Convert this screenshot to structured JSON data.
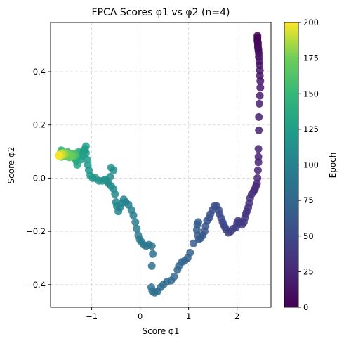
{
  "chart_data": {
    "type": "scatter",
    "title": "FPCA Scores φ1 vs φ2 (n=4)",
    "xlabel": "Score φ1",
    "ylabel": "Score φ2",
    "xlim": [
      -1.85,
      2.7
    ],
    "ylim": [
      -0.485,
      0.585
    ],
    "xticks": [
      -1,
      0,
      1,
      2
    ],
    "xtick_labels": [
      "−1",
      "0",
      "1",
      "2"
    ],
    "yticks": [
      -0.4,
      -0.2,
      0.0,
      0.2,
      0.4
    ],
    "ytick_labels": [
      "−0.4",
      "−0.2",
      "0.0",
      "0.2",
      "0.4"
    ],
    "grid": true,
    "colorbar": {
      "label": "Epoch",
      "colormap": "viridis",
      "range": [
        0,
        200
      ],
      "ticks": [
        0,
        25,
        50,
        75,
        100,
        125,
        150,
        175,
        200
      ],
      "tick_labels": [
        "0",
        "25",
        "50",
        "75",
        "100",
        "125",
        "150",
        "175",
        "200"
      ]
    },
    "points": [
      [
        2.42,
        0.535,
        0
      ],
      [
        2.42,
        0.528,
        1
      ],
      [
        2.42,
        0.522,
        2
      ],
      [
        2.42,
        0.515,
        3
      ],
      [
        2.43,
        0.508,
        4
      ],
      [
        2.43,
        0.5,
        5
      ],
      [
        2.43,
        0.492,
        6
      ],
      [
        2.44,
        0.485,
        7
      ],
      [
        2.44,
        0.478,
        8
      ],
      [
        2.45,
        0.468,
        9
      ],
      [
        2.45,
        0.455,
        10
      ],
      [
        2.46,
        0.44,
        11
      ],
      [
        2.46,
        0.425,
        12
      ],
      [
        2.47,
        0.405,
        13
      ],
      [
        2.47,
        0.385,
        14
      ],
      [
        2.48,
        0.365,
        15
      ],
      [
        2.48,
        0.34,
        16
      ],
      [
        2.47,
        0.31,
        17
      ],
      [
        2.46,
        0.28,
        18
      ],
      [
        2.45,
        0.23,
        19
      ],
      [
        2.45,
        0.18,
        20
      ],
      [
        2.44,
        0.11,
        21
      ],
      [
        2.44,
        0.08,
        22
      ],
      [
        2.44,
        0.06,
        23
      ],
      [
        2.43,
        0.03,
        24
      ],
      [
        2.42,
        0.0,
        25
      ],
      [
        2.41,
        -0.02,
        26
      ],
      [
        2.39,
        -0.03,
        27
      ],
      [
        2.37,
        -0.04,
        28
      ],
      [
        2.34,
        -0.05,
        29
      ],
      [
        2.3,
        -0.06,
        30
      ],
      [
        2.27,
        -0.075,
        31
      ],
      [
        2.25,
        -0.095,
        32
      ],
      [
        2.23,
        -0.11,
        33
      ],
      [
        2.2,
        -0.125,
        34
      ],
      [
        2.18,
        -0.135,
        35
      ],
      [
        2.16,
        -0.15,
        36
      ],
      [
        2.14,
        -0.165,
        37
      ],
      [
        2.1,
        -0.175,
        38
      ],
      [
        2.05,
        -0.165,
        39
      ],
      [
        2.02,
        -0.16,
        40
      ],
      [
        2.0,
        -0.17,
        41
      ],
      [
        1.98,
        -0.185,
        42
      ],
      [
        1.92,
        -0.19,
        43
      ],
      [
        1.87,
        -0.2,
        44
      ],
      [
        1.82,
        -0.205,
        45
      ],
      [
        1.78,
        -0.195,
        46
      ],
      [
        1.75,
        -0.185,
        47
      ],
      [
        1.72,
        -0.175,
        48
      ],
      [
        1.7,
        -0.165,
        49
      ],
      [
        1.67,
        -0.15,
        50
      ],
      [
        1.64,
        -0.135,
        51
      ],
      [
        1.62,
        -0.12,
        52
      ],
      [
        1.58,
        -0.105,
        53
      ],
      [
        1.53,
        -0.105,
        54
      ],
      [
        1.49,
        -0.12,
        55
      ],
      [
        1.45,
        -0.135,
        56
      ],
      [
        1.42,
        -0.15,
        57
      ],
      [
        1.38,
        -0.16,
        58
      ],
      [
        1.35,
        -0.18,
        59
      ],
      [
        1.33,
        -0.2,
        60
      ],
      [
        1.29,
        -0.215,
        61
      ],
      [
        1.25,
        -0.225,
        62
      ],
      [
        1.21,
        -0.23,
        63
      ],
      [
        1.19,
        -0.215,
        64
      ],
      [
        1.17,
        -0.195,
        65
      ],
      [
        1.18,
        -0.175,
        66
      ],
      [
        1.2,
        -0.165,
        67
      ],
      [
        1.1,
        -0.245,
        68
      ],
      [
        1.03,
        -0.28,
        69
      ],
      [
        0.98,
        -0.3,
        70
      ],
      [
        0.92,
        -0.31,
        71
      ],
      [
        0.86,
        -0.315,
        72
      ],
      [
        0.8,
        -0.33,
        73
      ],
      [
        0.77,
        -0.345,
        74
      ],
      [
        0.7,
        -0.37,
        75
      ],
      [
        0.64,
        -0.385,
        76
      ],
      [
        0.55,
        -0.39,
        77
      ],
      [
        0.48,
        -0.4,
        78
      ],
      [
        0.42,
        -0.41,
        79
      ],
      [
        0.36,
        -0.425,
        80
      ],
      [
        0.3,
        -0.43,
        81
      ],
      [
        0.25,
        -0.425,
        82
      ],
      [
        0.23,
        -0.41,
        83
      ],
      [
        0.24,
        -0.33,
        84
      ],
      [
        0.26,
        -0.285,
        85
      ],
      [
        0.24,
        -0.255,
        86
      ],
      [
        0.18,
        -0.25,
        87
      ],
      [
        0.12,
        -0.255,
        88
      ],
      [
        0.07,
        -0.25,
        89
      ],
      [
        0.03,
        -0.24,
        90
      ],
      [
        -0.01,
        -0.23,
        91
      ],
      [
        -0.04,
        -0.215,
        92
      ],
      [
        -0.07,
        -0.19,
        93
      ],
      [
        -0.1,
        -0.165,
        94
      ],
      [
        -0.14,
        -0.14,
        95
      ],
      [
        -0.18,
        -0.12,
        96
      ],
      [
        -0.24,
        -0.1,
        97
      ],
      [
        -0.3,
        -0.09,
        98
      ],
      [
        -0.34,
        -0.08,
        99
      ],
      [
        -0.38,
        -0.095,
        100
      ],
      [
        -0.42,
        -0.11,
        101
      ],
      [
        -0.45,
        -0.125,
        102
      ],
      [
        -0.48,
        -0.105,
        103
      ],
      [
        -0.5,
        -0.09,
        104
      ],
      [
        -0.52,
        -0.06,
        105
      ],
      [
        -0.55,
        -0.04,
        106
      ],
      [
        -0.6,
        -0.03,
        107
      ],
      [
        -0.65,
        -0.02,
        108
      ],
      [
        -0.7,
        -0.01,
        109
      ],
      [
        -0.62,
        0.005,
        110
      ],
      [
        -0.55,
        0.03,
        111
      ],
      [
        -0.6,
        0.04,
        112
      ],
      [
        -0.72,
        -0.005,
        113
      ],
      [
        -0.78,
        -0.01,
        114
      ],
      [
        -0.85,
        -0.01,
        115
      ],
      [
        -0.92,
        0.0,
        116
      ],
      [
        -0.98,
        0.0,
        117
      ],
      [
        -1.03,
        0.01,
        118
      ],
      [
        -1.06,
        0.03,
        119
      ],
      [
        -1.08,
        0.05,
        120
      ],
      [
        -1.1,
        0.07,
        121
      ],
      [
        -1.12,
        0.095,
        122
      ],
      [
        -1.14,
        0.11,
        123
      ],
      [
        -1.12,
        0.12,
        124
      ],
      [
        -1.16,
        0.1,
        125
      ],
      [
        -1.2,
        0.085,
        126
      ],
      [
        -1.22,
        0.07,
        127
      ],
      [
        -1.24,
        0.09,
        128
      ],
      [
        -1.27,
        0.1,
        129
      ],
      [
        -1.29,
        0.08,
        130
      ],
      [
        -1.32,
        0.065,
        131
      ],
      [
        -1.3,
        0.05,
        132
      ],
      [
        -1.34,
        0.075,
        133
      ],
      [
        -1.38,
        0.08,
        134
      ],
      [
        -1.4,
        0.082,
        135
      ],
      [
        -1.43,
        0.083,
        136
      ],
      [
        -1.46,
        0.08,
        137
      ],
      [
        -1.49,
        0.082,
        138
      ],
      [
        -1.52,
        0.085,
        139
      ],
      [
        -1.55,
        0.09,
        140
      ],
      [
        -1.58,
        0.095,
        141
      ],
      [
        -1.61,
        0.1,
        142
      ],
      [
        -1.63,
        0.105,
        143
      ],
      [
        -1.64,
        0.095,
        144
      ],
      [
        -1.63,
        0.088,
        145
      ],
      [
        -1.62,
        0.08,
        146
      ],
      [
        -1.64,
        0.085,
        147
      ],
      [
        -1.66,
        0.088,
        148
      ],
      [
        -1.67,
        0.086,
        149
      ],
      [
        -1.6,
        0.09,
        150
      ],
      [
        -1.55,
        0.094,
        151
      ],
      [
        -1.5,
        0.098,
        152
      ],
      [
        -1.45,
        0.09,
        153
      ],
      [
        -1.42,
        0.086,
        154
      ],
      [
        -1.38,
        0.084,
        155
      ],
      [
        -1.35,
        0.082,
        156
      ],
      [
        -1.33,
        0.088,
        157
      ],
      [
        -1.36,
        0.092,
        158
      ],
      [
        -1.4,
        0.09,
        159
      ],
      [
        -1.44,
        0.087,
        160
      ],
      [
        -1.48,
        0.088,
        161
      ],
      [
        -1.51,
        0.09,
        162
      ],
      [
        -1.54,
        0.088,
        163
      ],
      [
        -1.57,
        0.086,
        164
      ],
      [
        -1.55,
        0.084,
        165
      ],
      [
        -1.52,
        0.082,
        166
      ],
      [
        -1.49,
        0.08,
        167
      ],
      [
        -1.46,
        0.078,
        168
      ],
      [
        -1.44,
        0.08,
        169
      ],
      [
        -1.42,
        0.082,
        170
      ],
      [
        -1.4,
        0.084,
        171
      ],
      [
        -1.43,
        0.086,
        172
      ],
      [
        -1.46,
        0.088,
        173
      ],
      [
        -1.49,
        0.09,
        174
      ],
      [
        -1.52,
        0.092,
        175
      ],
      [
        -1.55,
        0.094,
        176
      ],
      [
        -1.58,
        0.096,
        177
      ],
      [
        -1.6,
        0.094,
        178
      ],
      [
        -1.62,
        0.092,
        179
      ],
      [
        -1.6,
        0.088,
        180
      ],
      [
        -1.58,
        0.086,
        181
      ],
      [
        -1.56,
        0.09,
        182
      ],
      [
        -1.59,
        0.092,
        183
      ],
      [
        -1.62,
        0.094,
        184
      ],
      [
        -1.64,
        0.092,
        185
      ],
      [
        -1.66,
        0.09,
        186
      ],
      [
        -1.65,
        0.087,
        187
      ],
      [
        -1.63,
        0.085,
        188
      ],
      [
        -1.61,
        0.087,
        189
      ],
      [
        -1.63,
        0.089,
        190
      ],
      [
        -1.65,
        0.088,
        191
      ],
      [
        -1.66,
        0.086,
        192
      ],
      [
        -1.67,
        0.085,
        193
      ],
      [
        -1.66,
        0.083,
        194
      ],
      [
        -1.67,
        0.084,
        195
      ],
      [
        -1.68,
        0.085,
        196
      ],
      [
        -1.67,
        0.086,
        197
      ],
      [
        -1.68,
        0.084,
        198
      ],
      [
        -1.68,
        0.085,
        199
      ]
    ]
  }
}
